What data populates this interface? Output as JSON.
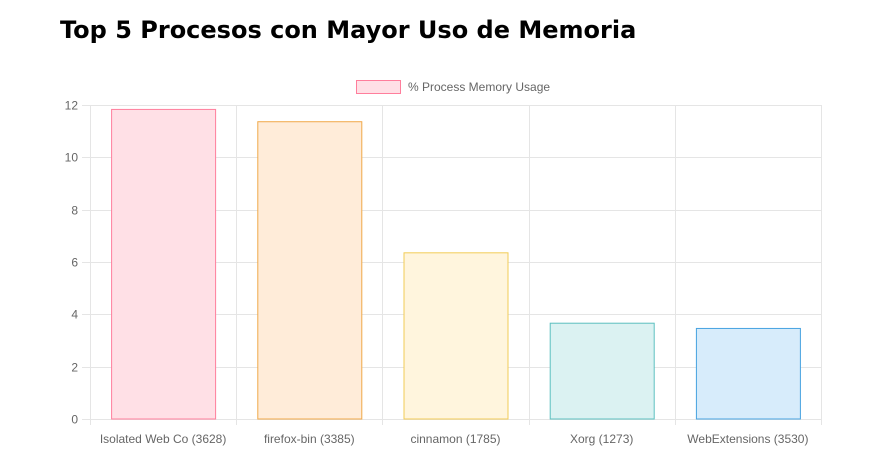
{
  "page": {
    "title": "Top 5 Procesos con Mayor Uso de Memoria"
  },
  "chart_data": {
    "type": "bar",
    "categories": [
      "Isolated Web Co (3628)",
      "firefox-bin (3385)",
      "cinnamon (1785)",
      "Xorg (1273)",
      "WebExtensions (3530)"
    ],
    "series": [
      {
        "name": "% Process Memory Usage",
        "values": [
          11.85,
          11.38,
          6.37,
          3.68,
          3.48
        ]
      }
    ],
    "bar_fill_colors": [
      "#ffe0e6",
      "#ffecd9",
      "#fff5dd",
      "#dbf2f2",
      "#d7ecfb"
    ],
    "bar_border_colors": [
      "#ff7e9c",
      "#f0a848",
      "#f2cc56",
      "#5cc0c0",
      "#46a2e0"
    ],
    "gridline_color": "#e5e5e5",
    "tick_color": "#666666",
    "ylim": [
      0,
      12
    ],
    "yticks": [
      0,
      2,
      4,
      6,
      8,
      10,
      12
    ],
    "grid": true,
    "legend_position": "top-center",
    "xlabel": "",
    "ylabel": ""
  }
}
